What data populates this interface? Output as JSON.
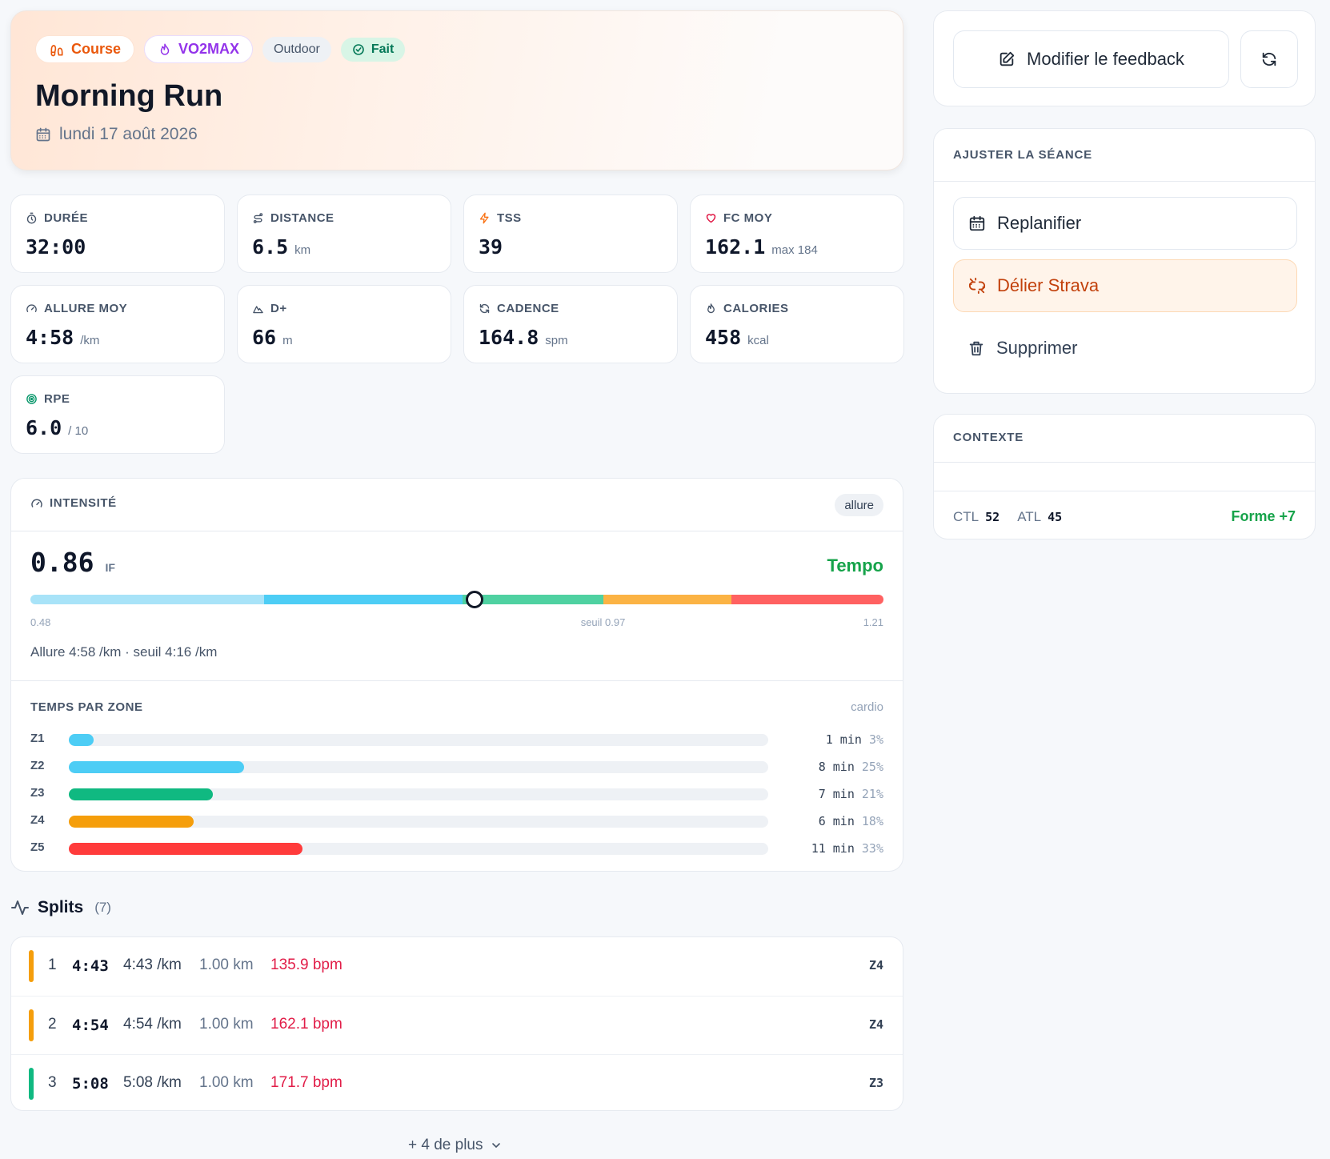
{
  "hero": {
    "badges": {
      "sport": "Course",
      "type": "VO2MAX",
      "env": "Outdoor",
      "status": "Fait"
    },
    "title": "Morning Run",
    "date": "lundi 17 août 2026"
  },
  "metrics": [
    {
      "label": "DURÉE",
      "value": "32:00",
      "unit": "",
      "icon": "stopwatch-icon"
    },
    {
      "label": "DISTANCE",
      "value": "6.5",
      "unit": "km",
      "icon": "route-icon"
    },
    {
      "label": "TSS",
      "value": "39",
      "unit": "",
      "icon": "bolt-icon"
    },
    {
      "label": "FC MOY",
      "value": "162.1",
      "unit": "max 184",
      "icon": "heart-icon"
    },
    {
      "label": "ALLURE MOY",
      "value": "4:58",
      "unit": "/km",
      "icon": "gauge-icon"
    },
    {
      "label": "D+",
      "value": "66",
      "unit": "m",
      "icon": "mountain-icon"
    },
    {
      "label": "CADENCE",
      "value": "164.8",
      "unit": "spm",
      "icon": "refresh-icon"
    },
    {
      "label": "CALORIES",
      "value": "458",
      "unit": "kcal",
      "icon": "flame-icon"
    },
    {
      "label": "RPE",
      "value": "6.0",
      "unit": "/ 10",
      "icon": "target-icon"
    }
  ],
  "intensity": {
    "title": "INTENSITÉ",
    "basis": "allure",
    "if_value": "0.86",
    "if_unit": "IF",
    "zone_label": "Tempo",
    "gauge": {
      "min": 0.48,
      "max": 1.21,
      "value": 0.86,
      "threshold": 0.97,
      "segments": [
        {
          "to": 0.68,
          "color": "#a8e3f8"
        },
        {
          "to": 0.85,
          "color": "#4dcdf5"
        },
        {
          "to": 0.97,
          "color": "#4fd1a1"
        },
        {
          "to": 1.08,
          "color": "#fbb344"
        },
        {
          "to": 1.21,
          "color": "#ff6161"
        }
      ]
    },
    "tick_min": "0.48",
    "tick_threshold": "seuil 0.97",
    "tick_max": "1.21",
    "pace_text": "Allure 4:58 /km · seuil 4:16 /km"
  },
  "zones": {
    "title": "TEMPS PAR ZONE",
    "note": "cardio",
    "rows": [
      {
        "label": "Z1",
        "time": "1 min",
        "pct": "3%",
        "fraction": 0.035,
        "color": "#4dcdf5"
      },
      {
        "label": "Z2",
        "time": "8 min",
        "pct": "25%",
        "fraction": 0.25,
        "color": "#4dcdf5"
      },
      {
        "label": "Z3",
        "time": "7 min",
        "pct": "21%",
        "fraction": 0.206,
        "color": "#10b981"
      },
      {
        "label": "Z4",
        "time": "6 min",
        "pct": "18%",
        "fraction": 0.179,
        "color": "#f59e0b"
      },
      {
        "label": "Z5",
        "time": "11 min",
        "pct": "33%",
        "fraction": 0.334,
        "color": "#ff3b3b"
      }
    ]
  },
  "splits": {
    "title": "Splits",
    "count": "(7)",
    "rows": [
      {
        "n": "1",
        "time": "4:43",
        "pace": "4:43 /km",
        "dist": "1.00 km",
        "hr": "135.9 bpm",
        "zone": "Z4",
        "color": "#f59e0b"
      },
      {
        "n": "2",
        "time": "4:54",
        "pace": "4:54 /km",
        "dist": "1.00 km",
        "hr": "162.1 bpm",
        "zone": "Z4",
        "color": "#f59e0b"
      },
      {
        "n": "3",
        "time": "5:08",
        "pace": "5:08 /km",
        "dist": "1.00 km",
        "hr": "171.7 bpm",
        "zone": "Z3",
        "color": "#10b981"
      }
    ],
    "more": "+ 4 de plus"
  },
  "sidebar": {
    "feedback_button": "Modifier le feedback",
    "adjust_title": "AJUSTER LA SÉANCE",
    "replan": "Replanifier",
    "unlink": "Délier Strava",
    "delete": "Supprimer",
    "context_title": "CONTEXTE",
    "ctl_label": "CTL",
    "ctl_value": "52",
    "atl_label": "ATL",
    "atl_value": "45",
    "form": "Forme +7"
  }
}
